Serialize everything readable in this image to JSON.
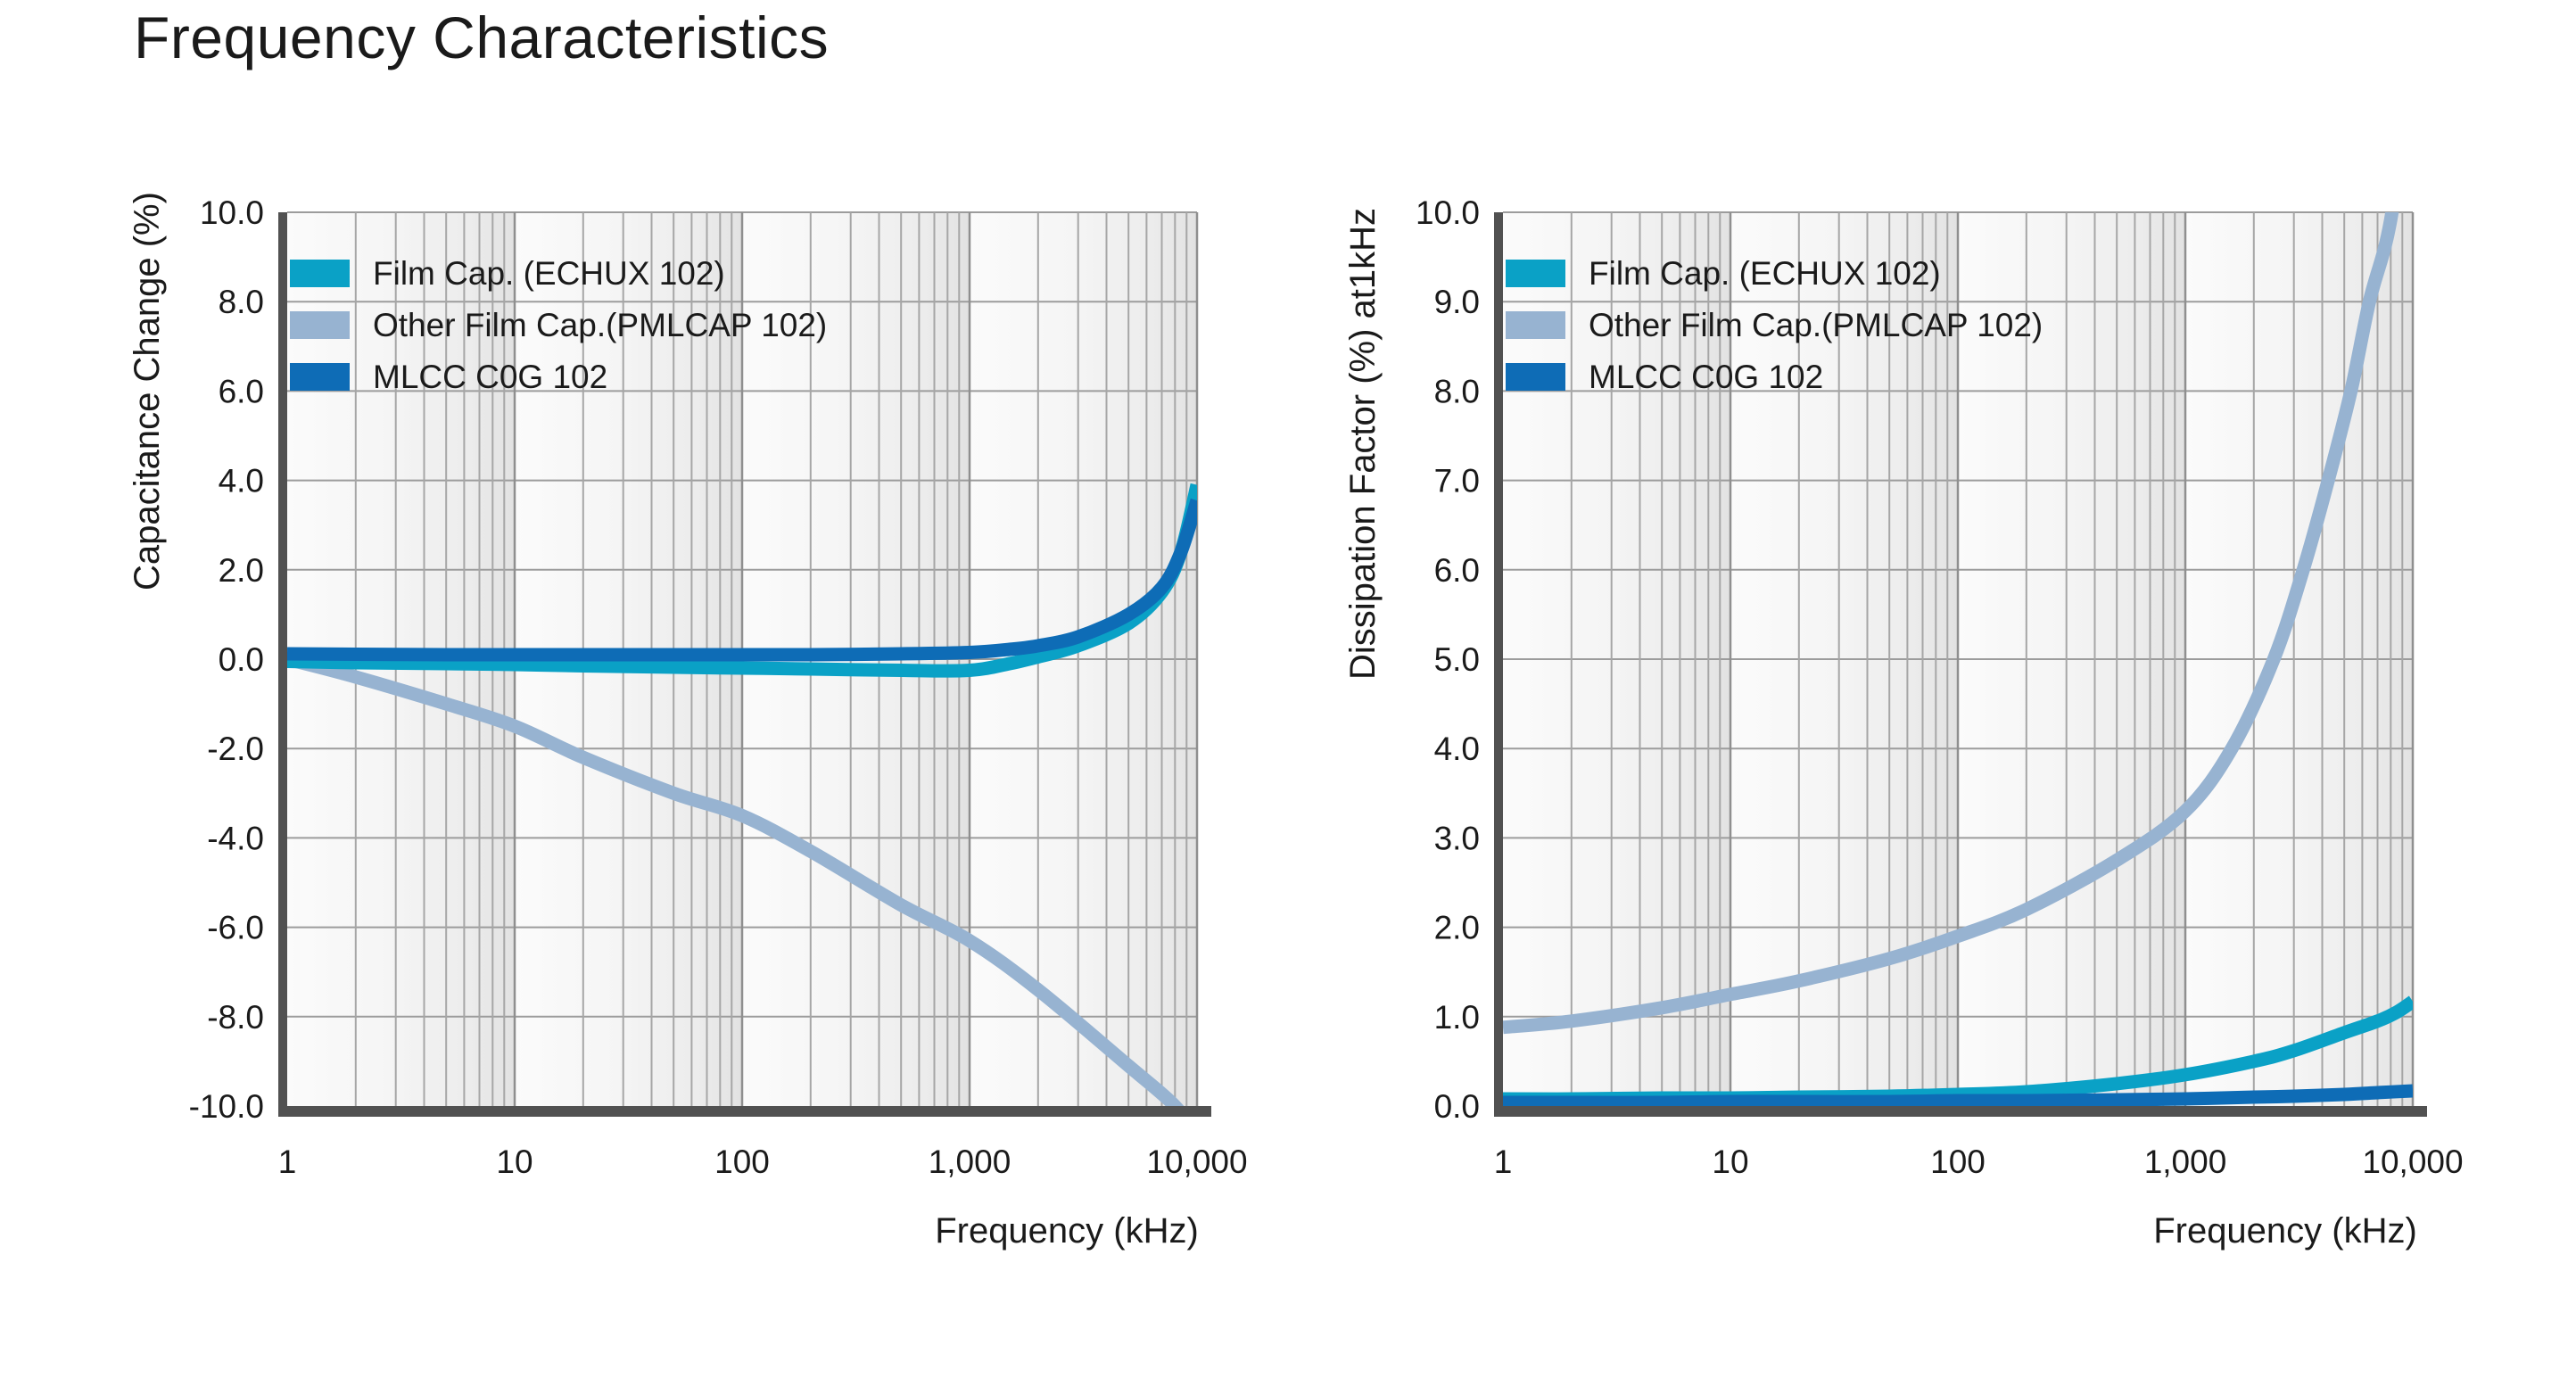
{
  "title": "Frequency Characteristics",
  "colors": {
    "series_film_cap": "#0AA1C6",
    "series_other_film_cap": "#97B3D1",
    "series_mlcc": "#0E6CB6",
    "axis_bar": "#515151",
    "grid_major": "#8F8F8F",
    "grid_minor": "#A6A6A6",
    "grid_horizontal": "#9C9C9C",
    "band_light": "#FBFBFB",
    "band_dark": "#E2E2E2",
    "text": "#1A1A1A"
  },
  "chart_data": [
    {
      "type": "line",
      "xlabel": "Frequency (kHz)",
      "ylabel": "Capacitance Change (%)",
      "x_scale": "log",
      "xlim": [
        1,
        10000
      ],
      "ylim": [
        -10,
        10
      ],
      "grid": true,
      "legend_position": "top-left",
      "x_ticks": [
        "1",
        "10",
        "100",
        "1,000",
        "10,000"
      ],
      "y_ticks": [
        "10.0",
        "8.0",
        "6.0",
        "4.0",
        "2.0",
        "0.0",
        "-2.0",
        "-4.0",
        "-6.0",
        "-8.0",
        "-10.0"
      ],
      "series": [
        {
          "name": "Film Cap. (ECHUX 102)",
          "color": "#0AA1C6",
          "x": [
            1,
            2,
            5,
            10,
            20,
            50,
            100,
            200,
            500,
            1000,
            1500,
            2000,
            3000,
            5000,
            7000,
            8500,
            10000
          ],
          "y": [
            -0.05,
            -0.08,
            -0.1,
            -0.12,
            -0.15,
            -0.18,
            -0.2,
            -0.22,
            -0.25,
            -0.25,
            -0.1,
            0.05,
            0.3,
            0.8,
            1.5,
            2.4,
            3.9
          ]
        },
        {
          "name": "Other Film Cap.(PMLCAP 102)",
          "color": "#97B3D1",
          "x": [
            1,
            2,
            5,
            10,
            20,
            50,
            100,
            200,
            500,
            1000,
            2000,
            5000,
            8000,
            10000
          ],
          "y": [
            0,
            -0.4,
            -1.0,
            -1.5,
            -2.2,
            -3.0,
            -3.5,
            -4.3,
            -5.5,
            -6.3,
            -7.4,
            -9.1,
            -10.0,
            -10.7
          ]
        },
        {
          "name": "MLCC C0G 102",
          "color": "#0E6CB6",
          "x": [
            1,
            2,
            5,
            10,
            20,
            50,
            100,
            200,
            500,
            1000,
            1500,
            2000,
            3000,
            5000,
            7000,
            8500,
            10000
          ],
          "y": [
            0.12,
            0.11,
            0.1,
            0.1,
            0.1,
            0.1,
            0.1,
            0.1,
            0.12,
            0.15,
            0.22,
            0.3,
            0.5,
            1.0,
            1.6,
            2.4,
            3.55
          ]
        }
      ]
    },
    {
      "type": "line",
      "xlabel": "Frequency (kHz)",
      "ylabel": "Dissipation Factor (%) at1kHz",
      "x_scale": "log",
      "xlim": [
        1,
        10000
      ],
      "ylim": [
        0,
        10
      ],
      "grid": true,
      "legend_position": "top-left",
      "x_ticks": [
        "1",
        "10",
        "100",
        "1,000",
        "10,000"
      ],
      "y_ticks": [
        "10.0",
        "9.0",
        "8.0",
        "7.0",
        "6.0",
        "5.0",
        "4.0",
        "3.0",
        "2.0",
        "1.0",
        "0.0"
      ],
      "series": [
        {
          "name": "Film Cap. (ECHUX 102)",
          "color": "#0AA1C6",
          "x": [
            1,
            2,
            5,
            10,
            20,
            50,
            100,
            200,
            500,
            1000,
            2000,
            3000,
            5000,
            7000,
            8500,
            10000
          ],
          "y": [
            0.08,
            0.08,
            0.09,
            0.09,
            0.1,
            0.11,
            0.13,
            0.16,
            0.25,
            0.35,
            0.5,
            0.62,
            0.82,
            0.95,
            1.05,
            1.17
          ]
        },
        {
          "name": "Other Film Cap.(PMLCAP 102)",
          "color": "#97B3D1",
          "x": [
            1,
            2,
            5,
            10,
            20,
            50,
            100,
            200,
            500,
            1000,
            1600,
            2450,
            3300,
            4250,
            5350,
            6450,
            8100,
            10000
          ],
          "y": [
            0.88,
            0.95,
            1.1,
            1.25,
            1.4,
            1.65,
            1.9,
            2.2,
            2.75,
            3.3,
            4.0,
            5.0,
            6.0,
            7.0,
            8.0,
            9.0,
            10.0,
            12.0
          ]
        },
        {
          "name": "MLCC C0G 102",
          "color": "#0E6CB6",
          "x": [
            1,
            2,
            5,
            10,
            20,
            50,
            100,
            200,
            500,
            1000,
            2000,
            3000,
            5000,
            7000,
            10000
          ],
          "y": [
            0.04,
            0.04,
            0.04,
            0.05,
            0.05,
            0.05,
            0.06,
            0.06,
            0.07,
            0.08,
            0.1,
            0.11,
            0.13,
            0.15,
            0.17
          ]
        }
      ]
    }
  ]
}
